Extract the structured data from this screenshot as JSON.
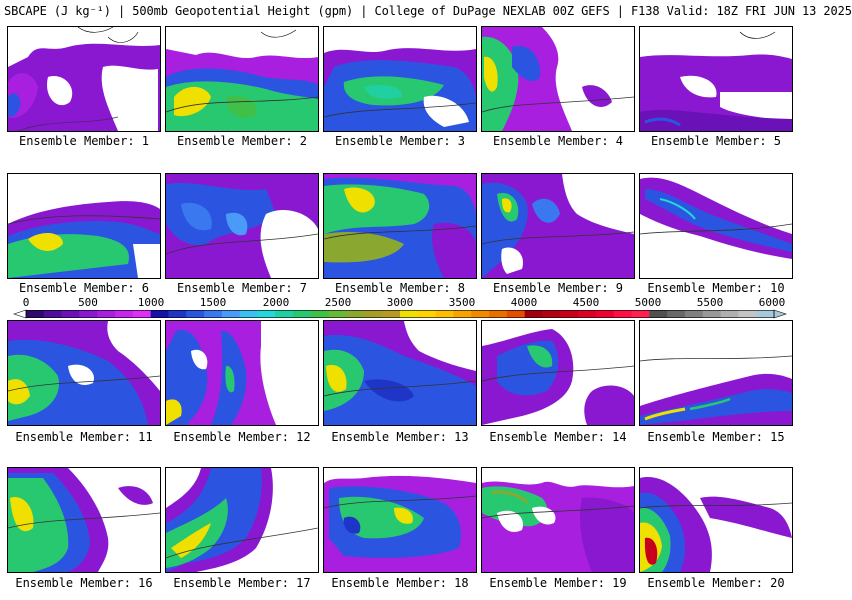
{
  "header": {
    "title": "SBCAPE (J kg⁻¹) | 500mb Geopotential Height (gpm) | College of DuPage NEXLAB 00Z GEFS | F138 Valid: 18Z FRI JUN 13 2025"
  },
  "colorbar": {
    "min": 0,
    "max": 6000,
    "tick_labels": [
      "0",
      "500",
      "1000",
      "1500",
      "2000",
      "2500",
      "3000",
      "3500",
      "4000",
      "4500",
      "5000",
      "5500",
      "6000"
    ],
    "tick_values": [
      0,
      500,
      1000,
      1500,
      2000,
      2500,
      3000,
      3500,
      4000,
      4500,
      5000,
      5500,
      6000
    ],
    "colors": [
      "#2e0a6e",
      "#4d0f9a",
      "#6a12b8",
      "#8a18d0",
      "#a81fe0",
      "#c626ee",
      "#dd30f4",
      "#1212a8",
      "#1f35c8",
      "#2b55e0",
      "#3a78f0",
      "#4a9af8",
      "#3cc0f0",
      "#22d8d8",
      "#20d0a0",
      "#28c870",
      "#40c048",
      "#6ab838",
      "#8aa830",
      "#a89c28",
      "#b89a20",
      "#f0e000",
      "#fcd400",
      "#fcbe00",
      "#f8a400",
      "#f08a00",
      "#e87000",
      "#e05000",
      "#a00010",
      "#b40014",
      "#c8001c",
      "#dc0024",
      "#f00030",
      "#ff1040",
      "#ff2050",
      "#505050",
      "#686868",
      "#808080",
      "#989898",
      "#b0b0b0",
      "#c4c4c4",
      "#a8c8dc"
    ]
  },
  "members": [
    {
      "label": "Ensemble Member: 1"
    },
    {
      "label": "Ensemble Member: 2"
    },
    {
      "label": "Ensemble Member: 3"
    },
    {
      "label": "Ensemble Member: 4"
    },
    {
      "label": "Ensemble Member: 5"
    },
    {
      "label": "Ensemble Member: 6"
    },
    {
      "label": "Ensemble Member: 7"
    },
    {
      "label": "Ensemble Member: 8"
    },
    {
      "label": "Ensemble Member: 9"
    },
    {
      "label": "Ensemble Member: 10"
    },
    {
      "label": "Ensemble Member: 11"
    },
    {
      "label": "Ensemble Member: 12"
    },
    {
      "label": "Ensemble Member: 13"
    },
    {
      "label": "Ensemble Member: 14"
    },
    {
      "label": "Ensemble Member: 15"
    },
    {
      "label": "Ensemble Member: 16"
    },
    {
      "label": "Ensemble Member: 17"
    },
    {
      "label": "Ensemble Member: 18"
    },
    {
      "label": "Ensemble Member: 19"
    },
    {
      "label": "Ensemble Member: 20"
    }
  ]
}
